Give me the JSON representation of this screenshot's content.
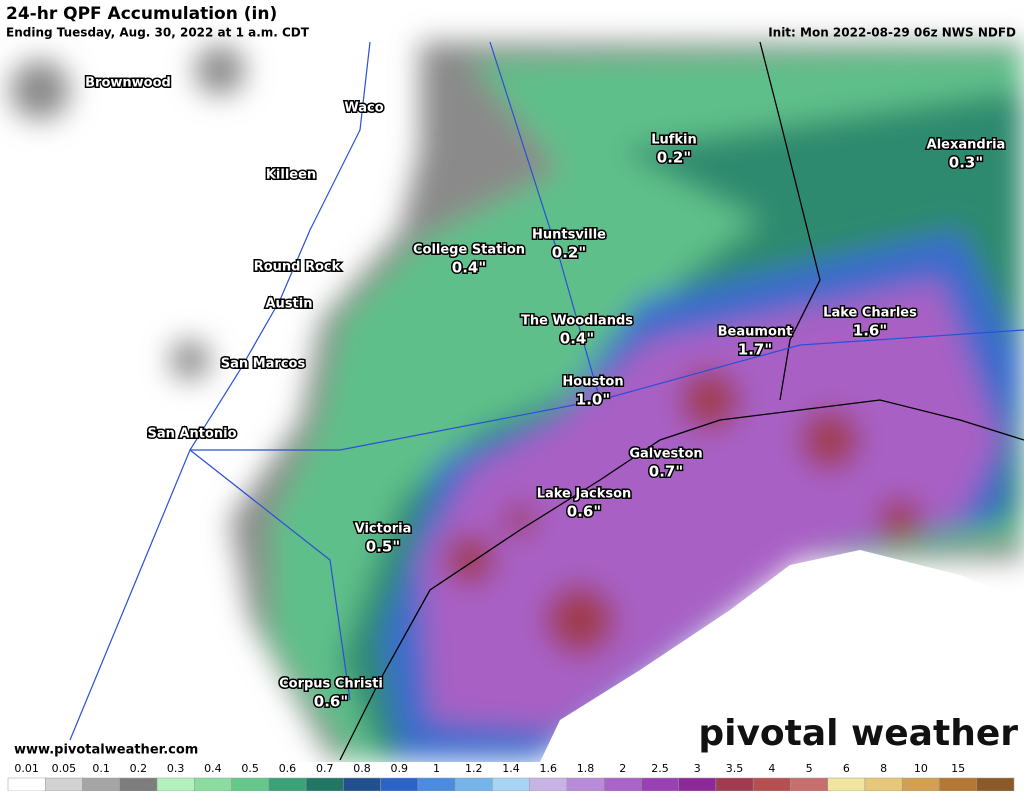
{
  "header": {
    "title": "24-hr QPF Accumulation (in)",
    "subtitle": "Ending Tuesday, Aug. 30, 2022 at 1 a.m. CDT",
    "init": "Init: Mon 2022-08-29 06z NWS NDFD"
  },
  "cities": [
    {
      "name": "Brownwood"
    },
    {
      "name": "Waco"
    },
    {
      "name": "Killeen"
    },
    {
      "name": "Round Rock"
    },
    {
      "name": "Austin"
    },
    {
      "name": "San Marcos"
    },
    {
      "name": "San Antonio"
    },
    {
      "name": "College Station",
      "value": 0.4,
      "value_label": "0.4\""
    },
    {
      "name": "Huntsville",
      "value": 0.2,
      "value_label": "0.2\""
    },
    {
      "name": "Lufkin",
      "value": 0.2,
      "value_label": "0.2\""
    },
    {
      "name": "Alexandria",
      "value": 0.3,
      "value_label": "0.3\""
    },
    {
      "name": "The Woodlands",
      "value": 0.4,
      "value_label": "0.4\""
    },
    {
      "name": "Beaumont",
      "value": 1.7,
      "value_label": "1.7\""
    },
    {
      "name": "Lake Charles",
      "value": 1.6,
      "value_label": "1.6\""
    },
    {
      "name": "Houston",
      "value": 1.0,
      "value_label": "1.0\""
    },
    {
      "name": "Galveston",
      "value": 0.7,
      "value_label": "0.7\""
    },
    {
      "name": "Lake Jackson",
      "value": 0.6,
      "value_label": "0.6\""
    },
    {
      "name": "Victoria",
      "value": 0.5,
      "value_label": "0.5\""
    },
    {
      "name": "Corpus Christi",
      "value": 0.6,
      "value_label": "0.6\""
    }
  ],
  "legend": {
    "ticks": [
      0.01,
      0.05,
      0.1,
      0.2,
      0.3,
      0.4,
      0.5,
      0.6,
      0.7,
      0.8,
      0.9,
      1,
      1.2,
      1.4,
      1.6,
      1.8,
      2,
      2.5,
      3,
      3.5,
      4,
      5,
      6,
      8,
      10,
      15
    ],
    "colors": [
      "#ffffff",
      "#d2d2d2",
      "#a5a5a5",
      "#7d7d7d",
      "#b4f0be",
      "#8cdca0",
      "#64c88c",
      "#3ca078",
      "#207864",
      "#205090",
      "#2a64c8",
      "#4a8ce0",
      "#78b4ec",
      "#a8d4f4",
      "#c8b4e4",
      "#b88cd8",
      "#a864c8",
      "#9840b4",
      "#8c2898",
      "#a03c50",
      "#b45050",
      "#c86e6e",
      "#f0e6a0",
      "#e6c878",
      "#d2a050",
      "#b47832",
      "#8c5a28"
    ]
  },
  "footer": {
    "url": "www.pivotalweather.com",
    "brand": "pivotal weather"
  }
}
